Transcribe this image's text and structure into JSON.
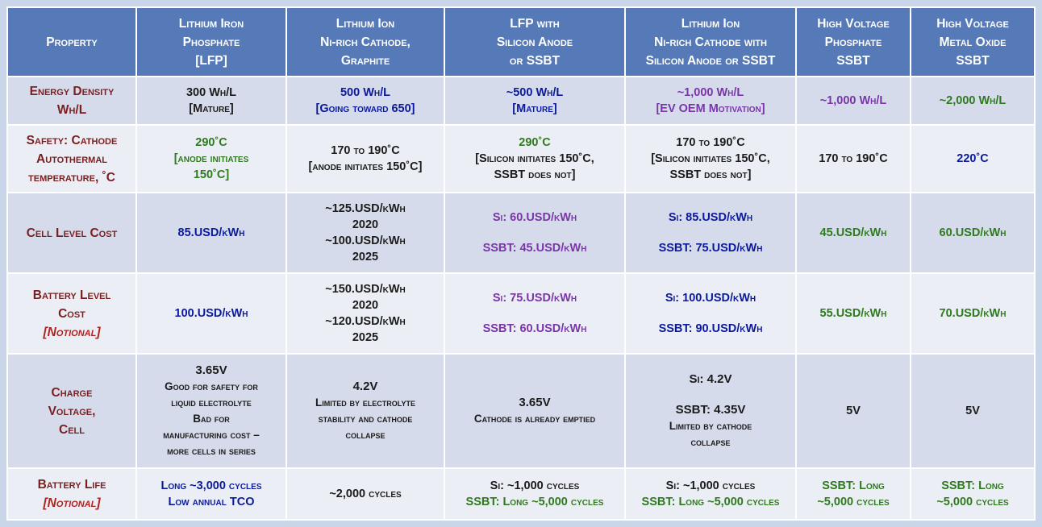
{
  "colors": {
    "header_bg": "#5679b8",
    "row_dark": "#d5dbea",
    "row_light": "#ebeef5",
    "property_text": "#7a1f1f",
    "notional": "#b3211d",
    "blue": "#0b1a9c",
    "purple": "#7a35a8",
    "green": "#2f7a1e"
  },
  "header": {
    "property": "Property",
    "lfp": [
      "Lithium Iron",
      "Phosphate",
      "[LFP]"
    ],
    "nmc": [
      "Lithium Ion",
      "Ni-rich Cathode,",
      "Graphite"
    ],
    "lfp_si": [
      "LFP with",
      "Silicon Anode",
      "or SSBT"
    ],
    "nmc_si": [
      "Lithium Ion",
      "Ni-rich Cathode with",
      "Silicon Anode or SSBT"
    ],
    "hv_phos": [
      "High Voltage",
      "Phosphate",
      "SSBT"
    ],
    "hv_oxide": [
      "High Voltage",
      "Metal Oxide",
      "SSBT"
    ]
  },
  "rows": {
    "energy": {
      "label": [
        "Energy Density",
        "Wh/L"
      ],
      "lfp": [
        "300 Wh/L",
        "[Mature]"
      ],
      "nmc": [
        "500 Wh/L",
        "[Going toward 650]"
      ],
      "lfp_si": [
        "~500 Wh/L",
        "[Mature]"
      ],
      "nmc_si": [
        "~1,000 Wh/L",
        "[EV OEM Motivation]"
      ],
      "hv_phos": "~1,000 Wh/L",
      "hv_oxide": "~2,000 Wh/L"
    },
    "safety": {
      "label": [
        "Safety: Cathode",
        "Autothermal",
        "temperature, ˚C"
      ],
      "lfp": [
        "290˚C",
        "[anode initiates",
        "150˚C]"
      ],
      "nmc": [
        "170 to 190˚C",
        "[anode initiates 150˚C]"
      ],
      "lfp_si": [
        "290˚C",
        "[Silicon initiates 150˚C,",
        "SSBT does not]"
      ],
      "nmc_si": [
        "170 to 190˚C",
        "[Silicon initiates 150˚C,",
        "SSBT does not]"
      ],
      "hv_phos": "170 to 190˚C",
      "hv_oxide": "220˚C"
    },
    "cell_cost": {
      "label": [
        "Cell Level Cost"
      ],
      "lfp": "85.USD/kWh",
      "nmc": [
        "~125.USD/kWh",
        "2020",
        "~100.USD/kWh",
        "2025"
      ],
      "lfp_si": [
        "Si: 60.USD/kWh",
        "SSBT: 45.USD/kWh"
      ],
      "nmc_si": [
        "Si: 85.USD/kWh",
        "SSBT: 75.USD/kWh"
      ],
      "hv_phos": "45.USD/kWh",
      "hv_oxide": "60.USD/kWh"
    },
    "battery_cost": {
      "label": [
        "Battery Level",
        "Cost"
      ],
      "label_notional": "[Notional]",
      "lfp": "100.USD/kWh",
      "nmc": [
        "~150.USD/kWh",
        "2020",
        "~120.USD/kWh",
        "2025"
      ],
      "lfp_si": [
        "Si: 75.USD/kWh",
        "SSBT: 60.USD/kWh"
      ],
      "nmc_si": [
        "Si: 100.USD/kWh",
        "SSBT: 90.USD/kWh"
      ],
      "hv_phos": "55.USD/kWh",
      "hv_oxide": "70.USD/kWh"
    },
    "voltage": {
      "label": [
        "Charge",
        "Voltage,",
        "Cell"
      ],
      "lfp": [
        "3.65V",
        "Good for safety for",
        "liquid electrolyte",
        "Bad for",
        "manufacturing cost –",
        "more cells in series"
      ],
      "nmc": [
        "4.2V",
        "Limited by electrolyte",
        "stability and cathode",
        "collapse"
      ],
      "lfp_si": [
        "3.65V",
        "Cathode is already emptied"
      ],
      "nmc_si": [
        "Si: 4.2V",
        "SSBT: 4.35V",
        "Limited by cathode",
        "collapse"
      ],
      "hv_phos": "5V",
      "hv_oxide": "5V"
    },
    "life": {
      "label": [
        "Battery Life"
      ],
      "label_notional": "[Notional]",
      "lfp": [
        "Long ~3,000 cycles",
        "Low annual TCO"
      ],
      "nmc": "~2,000 cycles",
      "lfp_si": [
        "Si: ~1,000 cycles",
        "SSBT: Long ~5,000 cycles"
      ],
      "nmc_si": [
        "Si: ~1,000 cycles",
        "SSBT: Long ~5,000 cycles"
      ],
      "hv_phos": [
        "SSBT: Long",
        "~5,000 cycles"
      ],
      "hv_oxide": [
        "SSBT: Long",
        "~5,000 cycles"
      ]
    }
  }
}
